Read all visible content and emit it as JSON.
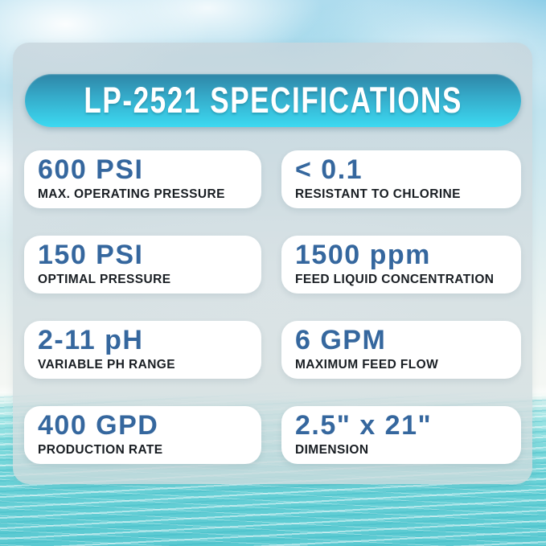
{
  "header": {
    "title": "LP-2521 SPECIFICATIONS"
  },
  "specs": [
    {
      "value": "600 PSI",
      "label": "MAX. OPERATING PRESSURE"
    },
    {
      "value": "< 0.1",
      "label": "RESISTANT TO CHLORINE"
    },
    {
      "value": "150 PSI",
      "label": "OPTIMAL PRESSURE"
    },
    {
      "value": "1500 ppm",
      "label": "FEED LIQUID CONCENTRATION"
    },
    {
      "value": "2-11 pH",
      "label": "VARIABLE PH RANGE"
    },
    {
      "value": "6 GPM",
      "label": "MAXIMUM FEED FLOW"
    },
    {
      "value": "400 GPD",
      "label": "PRODUCTION RATE"
    },
    {
      "value": "2.5\" x 21\"",
      "label": "DIMENSION"
    }
  ],
  "colors": {
    "banner_gradient_top": "#2e85a6",
    "banner_gradient_bottom": "#3cd9f1",
    "value_text": "#35679e",
    "label_text": "#191e23",
    "card_background": "#ffffff",
    "panel_background": "rgba(208,220,224,0.84)",
    "sky": "#aedcee",
    "ocean": "#59c9d1"
  }
}
